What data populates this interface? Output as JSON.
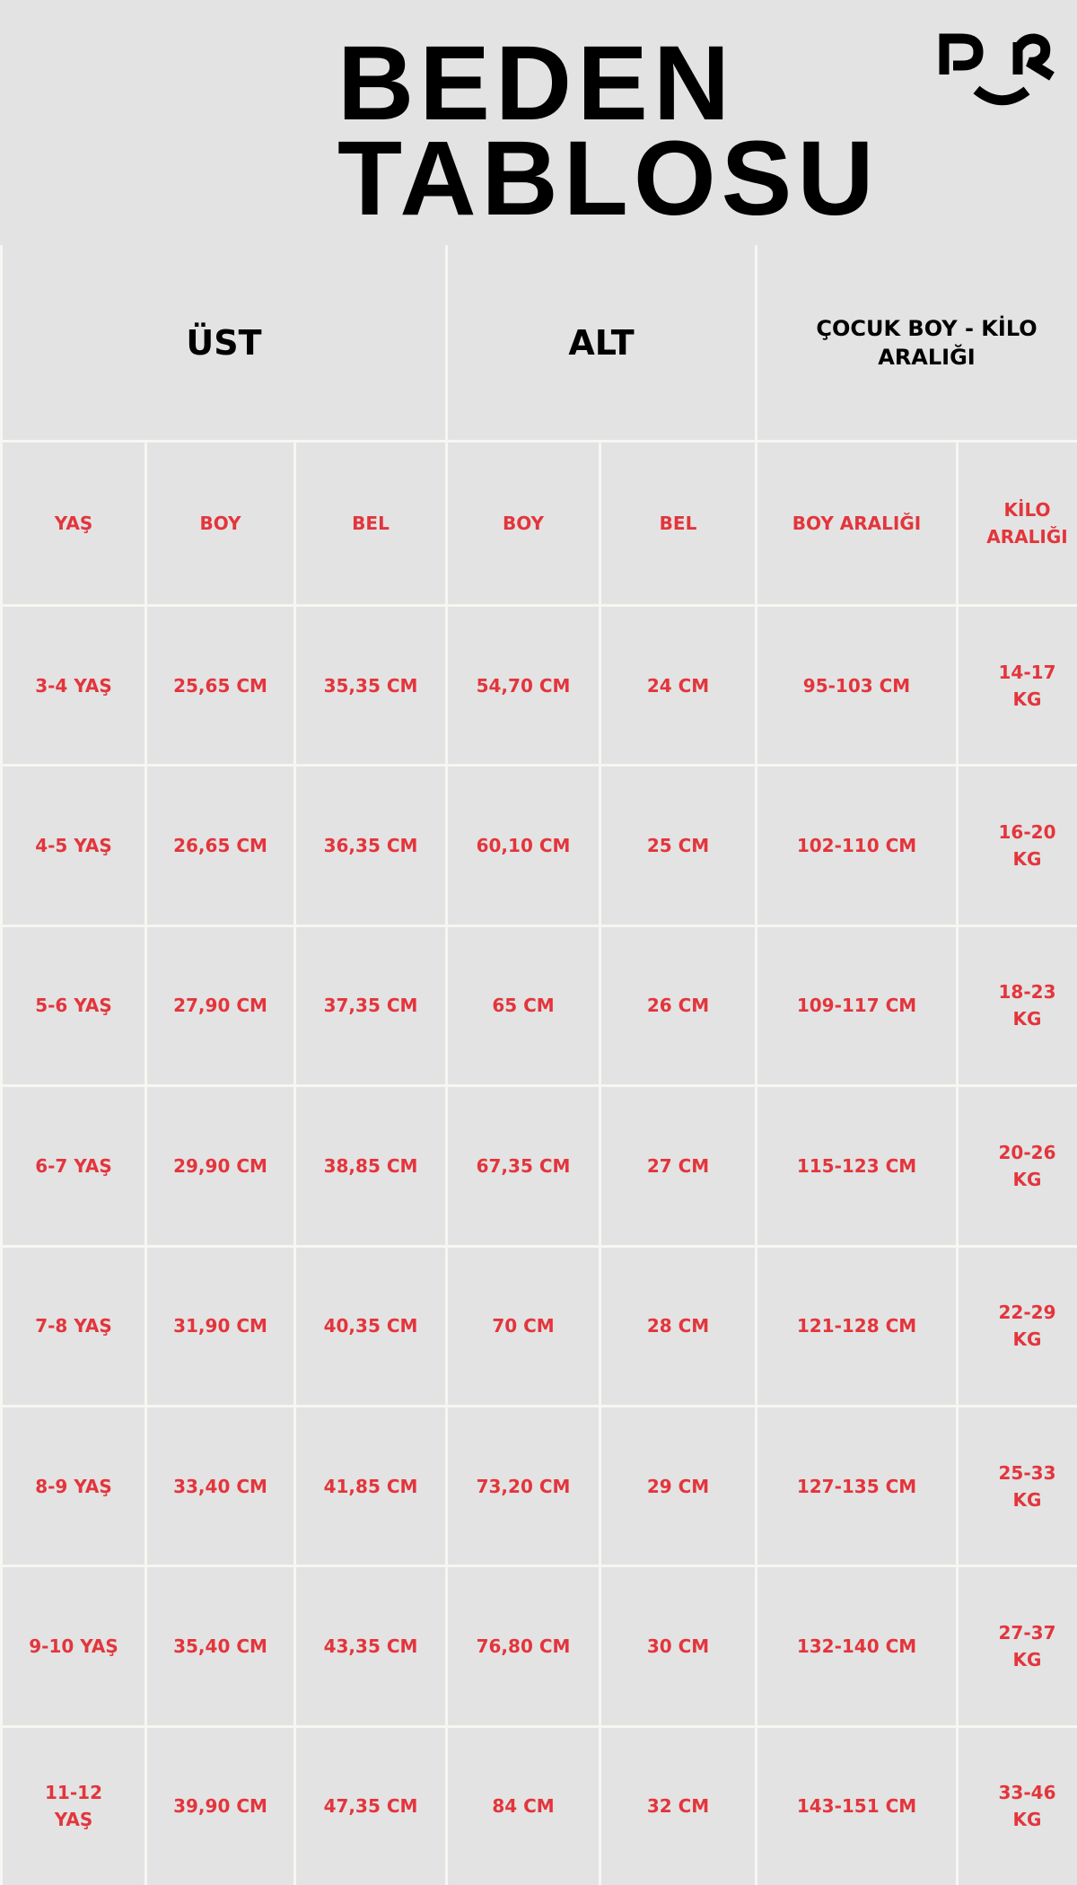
{
  "title": {
    "line1": "BEDEN",
    "line2": "TABLOSU"
  },
  "logo": {
    "text": "PR"
  },
  "colors": {
    "background": "#e3e3e3",
    "accent": "#e3353c",
    "border": "#f6f6f2"
  },
  "groups": [
    "ÜST",
    "ALT",
    "ÇOCUK BOY - KİLO ARALIĞI"
  ],
  "columns": [
    "YAŞ",
    "BOY",
    "BEL",
    "BOY",
    "BEL",
    "BOY ARALIĞI",
    "KİLO ARALIĞI"
  ],
  "rows": [
    [
      "3-4 YAŞ",
      "25,65 CM",
      "35,35 CM",
      "54,70 CM",
      "24 CM",
      "95-103 CM",
      "14-17 KG"
    ],
    [
      "4-5 YAŞ",
      "26,65 CM",
      "36,35 CM",
      "60,10 CM",
      "25 CM",
      "102-110 CM",
      "16-20 KG"
    ],
    [
      "5-6 YAŞ",
      "27,90 CM",
      "37,35 CM",
      "65 CM",
      "26 CM",
      "109-117 CM",
      "18-23 KG"
    ],
    [
      "6-7 YAŞ",
      "29,90 CM",
      "38,85 CM",
      "67,35 CM",
      "27 CM",
      "115-123 CM",
      "20-26 KG"
    ],
    [
      "7-8 YAŞ",
      "31,90 CM",
      "40,35 CM",
      "70 CM",
      "28 CM",
      "121-128 CM",
      "22-29 KG"
    ],
    [
      "8-9 YAŞ",
      "33,40 CM",
      "41,85 CM",
      "73,20 CM",
      "29 CM",
      "127-135 CM",
      "25-33 KG"
    ],
    [
      "9-10 YAŞ",
      "35,40 CM",
      "43,35 CM",
      "76,80 CM",
      "30 CM",
      "132-140 CM",
      "27-37 KG"
    ],
    [
      "11-12 YAŞ",
      "39,90 CM",
      "47,35 CM",
      "84 CM",
      "32 CM",
      "143-151 CM",
      "33-46 KG"
    ]
  ]
}
